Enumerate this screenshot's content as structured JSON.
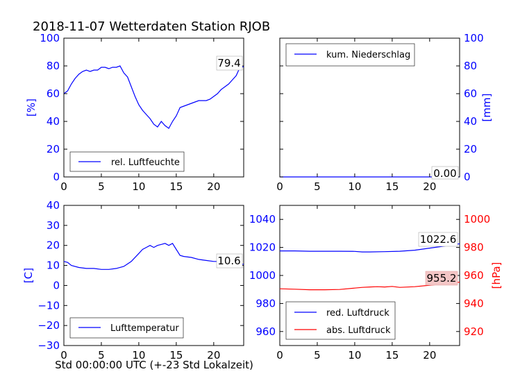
{
  "title": "2018-11-07 Wetterdaten Station RJOB",
  "colors": {
    "blue": "#0000ff",
    "red": "#ff0000",
    "black": "#000000",
    "pink_box": "#f4c6c6"
  },
  "chart_data": [
    {
      "type": "line",
      "ylabel": "[%]",
      "ylabel_color": "#0000ff",
      "tick_color": "#0000ff",
      "ylim": [
        0,
        100
      ],
      "yticks": [
        "0",
        "20",
        "40",
        "60",
        "80",
        "100"
      ],
      "xlim": [
        0,
        24
      ],
      "xticks": [
        "0",
        "5",
        "10",
        "15",
        "20"
      ],
      "legend": {
        "placement": "lower-center",
        "entries": [
          {
            "label": "rel. Luftfeuchte",
            "color": "#0000ff"
          }
        ]
      },
      "current_value": "79.4",
      "series": [
        {
          "name": "rel. Luftfeuchte",
          "color": "#0000ff",
          "x": [
            0,
            0.5,
            1,
            1.5,
            2,
            2.5,
            3,
            3.5,
            4,
            4.5,
            5,
            5.5,
            6,
            6.5,
            7,
            7.5,
            8,
            8.5,
            9,
            9.5,
            10,
            10.5,
            11,
            11.5,
            12,
            12.5,
            13,
            13.5,
            14,
            14.5,
            15,
            15.5,
            16,
            16.5,
            17,
            17.5,
            18,
            18.5,
            19,
            19.5,
            20,
            20.5,
            21,
            21.5,
            22,
            22.5,
            23,
            23.5,
            24
          ],
          "y": [
            60,
            62,
            67,
            71,
            74,
            76,
            77,
            76,
            77,
            77,
            79,
            79,
            78,
            79,
            79,
            80,
            75,
            72,
            65,
            58,
            52,
            48,
            45,
            42,
            38,
            36,
            40,
            37,
            35,
            40,
            44,
            50,
            51,
            52,
            53,
            54,
            55,
            55,
            55,
            56,
            58,
            60,
            63,
            65,
            67,
            70,
            73,
            79,
            79.4
          ]
        }
      ]
    },
    {
      "type": "line",
      "ylabel": "[mm]",
      "ylabel_color": "#0000ff",
      "tick_color": "#0000ff",
      "ylim": [
        0,
        100
      ],
      "yticks": [
        "0",
        "20",
        "40",
        "60",
        "80",
        "100"
      ],
      "xlim": [
        0,
        24
      ],
      "xticks": [
        "0",
        "5",
        "10",
        "15",
        "20"
      ],
      "legend": {
        "placement": "upper-left",
        "entries": [
          {
            "label": "kum. Niederschlag",
            "color": "#0000ff"
          }
        ]
      },
      "current_value": "0.00",
      "series": [
        {
          "name": "kum. Niederschlag",
          "color": "#0000ff",
          "x": [
            0,
            24
          ],
          "y": [
            0,
            0
          ]
        }
      ]
    },
    {
      "type": "line",
      "ylabel": "[C]",
      "ylabel_color": "#0000ff",
      "tick_color": "#0000ff",
      "ylim": [
        -30,
        40
      ],
      "yticks": [
        "−30",
        "−20",
        "−10",
        "0",
        "10",
        "20",
        "30",
        "40"
      ],
      "xlim": [
        0,
        24
      ],
      "xticks": [
        "0",
        "5",
        "10",
        "15",
        "20"
      ],
      "xlabel": "Std 00:00:00 UTC (+-23 Std Lokalzeit)",
      "legend": {
        "placement": "lower-center",
        "entries": [
          {
            "label": "Lufttemperatur",
            "color": "#0000ff"
          }
        ]
      },
      "current_value": "10.6",
      "series": [
        {
          "name": "Lufttemperatur",
          "color": "#0000ff",
          "x": [
            0,
            0.5,
            1,
            2,
            3,
            4,
            5,
            6,
            7,
            8,
            9,
            10,
            10.5,
            11,
            11.5,
            12,
            12.5,
            13,
            13.5,
            14,
            14.5,
            15,
            15.5,
            16,
            17,
            18,
            19,
            20,
            21,
            22,
            23,
            24
          ],
          "y": [
            12,
            11.5,
            10,
            9,
            8.5,
            8.5,
            8,
            8,
            8.5,
            9.5,
            12,
            16,
            18,
            19,
            20,
            19,
            20,
            20.5,
            21,
            20,
            21,
            18,
            15,
            14.5,
            14,
            13,
            12.5,
            12,
            12,
            11.5,
            10.6,
            10.6
          ]
        }
      ]
    },
    {
      "type": "line",
      "ylabel": "[hPa]",
      "ylabel_color": "#ff0000",
      "left_tick_color": "#0000ff",
      "right_tick_color": "#ff0000",
      "ylim_left": [
        950,
        1050
      ],
      "yticks_left": [
        "960",
        "980",
        "1000",
        "1020",
        "1040"
      ],
      "ylim_right": [
        910,
        1010
      ],
      "yticks_right": [
        "920",
        "940",
        "960",
        "980",
        "1000"
      ],
      "xlim": [
        0,
        24
      ],
      "xticks": [
        "0",
        "5",
        "10",
        "15",
        "20"
      ],
      "legend": {
        "placement": "lower-left",
        "entries": [
          {
            "label": "red. Luftdruck",
            "color": "#0000ff"
          },
          {
            "label": "abs. Luftdruck",
            "color": "#ff0000"
          }
        ]
      },
      "current_values": [
        "1022.6",
        "955.2"
      ],
      "series": [
        {
          "name": "red. Luftdruck",
          "color": "#0000ff",
          "axis": "left",
          "x": [
            0,
            2,
            4,
            6,
            8,
            10,
            11,
            12,
            14,
            16,
            18,
            20,
            22,
            24
          ],
          "y": [
            1017.5,
            1017.5,
            1017.3,
            1017.3,
            1017.3,
            1017.2,
            1016.8,
            1016.8,
            1017,
            1017.3,
            1018,
            1019.5,
            1021,
            1022.6
          ]
        },
        {
          "name": "abs. Luftdruck",
          "color": "#ff0000",
          "axis": "right",
          "x": [
            0,
            2,
            4,
            6,
            8,
            10,
            11,
            12,
            13,
            14,
            15,
            16,
            18,
            20,
            22,
            24
          ],
          "y": [
            950.5,
            950.2,
            949.8,
            949.8,
            950,
            951,
            951.5,
            951.8,
            952,
            951.8,
            952.2,
            951.5,
            952,
            953,
            954,
            955.2
          ]
        }
      ]
    }
  ]
}
